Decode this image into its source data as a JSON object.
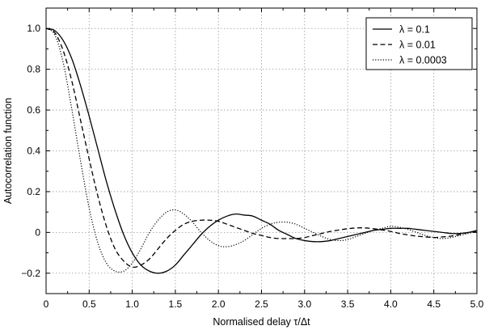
{
  "chart_data": {
    "type": "line",
    "title": "",
    "xlabel": "Normalised delay τ/Δt",
    "ylabel": "Autocorrelation function",
    "xlim": [
      0,
      5
    ],
    "ylim": [
      -0.3,
      1.1
    ],
    "x_ticks": [
      0,
      0.5,
      1.0,
      1.5,
      2.0,
      2.5,
      3.0,
      3.5,
      4.0,
      4.5,
      5.0
    ],
    "x_tick_labels": [
      "0",
      "0.5",
      "1.0",
      "1.5",
      "2.0",
      "2.5",
      "3.0",
      "3.5",
      "4.0",
      "4.5",
      "5.0"
    ],
    "y_ticks": [
      -0.2,
      0,
      0.2,
      0.4,
      0.6,
      0.8,
      1.0
    ],
    "y_tick_labels": [
      "−0.2",
      "0",
      "0.2",
      "0.4",
      "0.6",
      "0.8",
      "1.0"
    ],
    "grid": true,
    "legend_position": "top-right",
    "series": [
      {
        "name": "λ = 0.1",
        "style": "solid",
        "x": [
          0,
          0.1,
          0.2,
          0.3,
          0.4,
          0.5,
          0.6,
          0.7,
          0.8,
          0.9,
          1.0,
          1.1,
          1.2,
          1.3,
          1.4,
          1.5,
          1.6,
          1.7,
          1.8,
          1.9,
          2.0,
          2.1,
          2.2,
          2.3,
          2.4,
          2.5,
          2.6,
          2.7,
          2.8,
          2.9,
          3.0,
          3.1,
          3.2,
          3.3,
          3.4,
          3.5,
          3.6,
          3.7,
          3.8,
          3.9,
          4.0,
          4.1,
          4.2,
          4.3,
          4.4,
          4.5,
          4.6,
          4.7,
          4.8,
          4.9,
          5.0
        ],
        "y": [
          1.0,
          0.99,
          0.94,
          0.85,
          0.72,
          0.57,
          0.41,
          0.25,
          0.11,
          -0.01,
          -0.1,
          -0.16,
          -0.19,
          -0.2,
          -0.19,
          -0.16,
          -0.11,
          -0.06,
          -0.01,
          0.03,
          0.06,
          0.08,
          0.09,
          0.085,
          0.08,
          0.06,
          0.04,
          0.01,
          -0.01,
          -0.03,
          -0.04,
          -0.045,
          -0.045,
          -0.04,
          -0.03,
          -0.02,
          -0.01,
          0.0,
          0.01,
          0.015,
          0.02,
          0.02,
          0.02,
          0.015,
          0.01,
          0.005,
          0.0,
          -0.005,
          -0.005,
          0.0,
          0.01
        ]
      },
      {
        "name": "λ = 0.01",
        "style": "dashed",
        "x": [
          0,
          0.1,
          0.2,
          0.3,
          0.4,
          0.5,
          0.6,
          0.7,
          0.8,
          0.9,
          1.0,
          1.1,
          1.2,
          1.3,
          1.4,
          1.5,
          1.6,
          1.7,
          1.8,
          1.9,
          2.0,
          2.1,
          2.2,
          2.3,
          2.4,
          2.5,
          2.6,
          2.7,
          2.8,
          2.9,
          3.0,
          3.1,
          3.2,
          3.3,
          3.4,
          3.5,
          3.6,
          3.7,
          3.8,
          3.9,
          4.0,
          4.1,
          4.2,
          4.3,
          4.4,
          4.5,
          4.6,
          4.7,
          4.8,
          4.9,
          5.0
        ],
        "y": [
          1.0,
          0.98,
          0.89,
          0.74,
          0.55,
          0.36,
          0.18,
          0.03,
          -0.08,
          -0.14,
          -0.17,
          -0.16,
          -0.13,
          -0.08,
          -0.03,
          0.01,
          0.04,
          0.055,
          0.06,
          0.06,
          0.055,
          0.04,
          0.025,
          0.01,
          -0.005,
          -0.015,
          -0.025,
          -0.03,
          -0.03,
          -0.03,
          -0.025,
          -0.015,
          -0.005,
          0.005,
          0.012,
          0.018,
          0.022,
          0.022,
          0.018,
          0.012,
          0.005,
          -0.005,
          -0.012,
          -0.018,
          -0.022,
          -0.025,
          -0.022,
          -0.018,
          -0.01,
          0.0,
          0.005
        ]
      },
      {
        "name": "λ = 0.0003",
        "style": "dotted",
        "x": [
          0,
          0.1,
          0.2,
          0.3,
          0.4,
          0.5,
          0.6,
          0.7,
          0.8,
          0.9,
          1.0,
          1.1,
          1.2,
          1.3,
          1.4,
          1.5,
          1.6,
          1.7,
          1.8,
          1.9,
          2.0,
          2.1,
          2.2,
          2.3,
          2.4,
          2.5,
          2.6,
          2.7,
          2.8,
          2.9,
          3.0,
          3.1,
          3.2,
          3.3,
          3.4,
          3.5,
          3.6,
          3.7,
          3.8,
          3.9,
          4.0,
          4.1,
          4.2,
          4.3,
          4.4,
          4.5,
          4.6,
          4.7,
          4.8,
          4.9,
          5.0
        ],
        "y": [
          1.0,
          0.97,
          0.83,
          0.6,
          0.35,
          0.12,
          -0.05,
          -0.15,
          -0.19,
          -0.19,
          -0.15,
          -0.08,
          0.0,
          0.06,
          0.1,
          0.11,
          0.09,
          0.05,
          0.0,
          -0.04,
          -0.065,
          -0.07,
          -0.06,
          -0.04,
          -0.01,
          0.02,
          0.04,
          0.05,
          0.05,
          0.04,
          0.02,
          0.0,
          -0.02,
          -0.035,
          -0.04,
          -0.035,
          -0.02,
          -0.005,
          0.01,
          0.02,
          0.03,
          0.025,
          0.015,
          0.0,
          -0.015,
          -0.025,
          -0.03,
          -0.025,
          -0.015,
          -0.005,
          0.005
        ]
      }
    ]
  }
}
